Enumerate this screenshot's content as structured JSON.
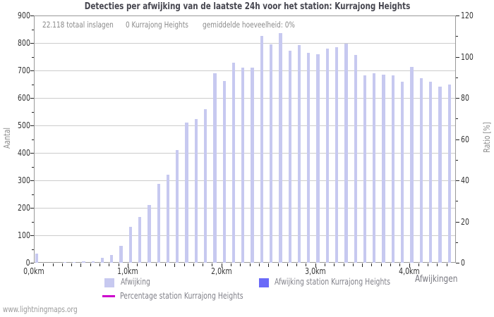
{
  "page": {
    "title": "Detecties per afwijking van de laatste 24h voor het station: Kurrajong Heights",
    "footer": "www.lightningmaps.org"
  },
  "stats": {
    "total_label": "22.118 totaal inslagen",
    "station_label": "0 Kurrajong Heights",
    "average_label": "gemiddelde hoeveelheid: 0%"
  },
  "legend": {
    "afwijking": "Afwijking",
    "station": "Afwijking station Kurrajong Heights",
    "percentage": "Percentage station Kurrajong Heights"
  },
  "chart_data": {
    "type": "bar",
    "title": "Detecties per afwijking van de laatste 24h voor het station: Kurrajong Heights",
    "xlabel": "Afwijkingen",
    "ylabel_left": "Aantal",
    "ylabel_right": "Ratio [%]",
    "ylim_left": [
      0,
      900
    ],
    "ylim_right": [
      0,
      120
    ],
    "y_ticks_left": [
      0,
      100,
      200,
      300,
      400,
      500,
      600,
      700,
      800,
      900
    ],
    "y_ticks_right": [
      0,
      20,
      40,
      60,
      80,
      100,
      120
    ],
    "x_tick_labels": [
      "0,0km",
      "1,0km",
      "2,0km",
      "3,0km",
      "4,0km"
    ],
    "x_km_start": 0.0,
    "x_km_step": 0.1,
    "grid": "horizontal",
    "legend_position": "bottom",
    "series": [
      {
        "name": "Afwijking",
        "type": "bar",
        "color": "#c7c9f0",
        "values": [
          34,
          0,
          0,
          1,
          2,
          4,
          6,
          19,
          28,
          61,
          131,
          167,
          210,
          288,
          321,
          409,
          509,
          523,
          560,
          689,
          662,
          729,
          710,
          710,
          826,
          795,
          837,
          773,
          793,
          764,
          758,
          780,
          785,
          798,
          756,
          681,
          689,
          685,
          682,
          659,
          713,
          672,
          658,
          640,
          649
        ]
      },
      {
        "name": "Afwijking station Kurrajong Heights",
        "type": "bar",
        "color": "#6a6af8",
        "values": []
      },
      {
        "name": "Percentage station Kurrajong Heights",
        "type": "line",
        "color": "#cc00cc",
        "values": []
      }
    ],
    "colors": {
      "grid": "#cccccc",
      "axis": "#999999",
      "tick": "#222222"
    }
  }
}
